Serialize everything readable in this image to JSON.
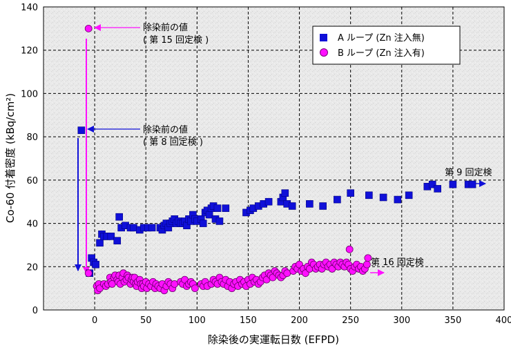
{
  "chart_data": {
    "type": "scatter",
    "title": "",
    "xlabel": "除染後の実運転日数 (EFPD)",
    "ylabel": "Co-60 付着密度 (kBq/cm²)",
    "xlim": [
      -50,
      400
    ],
    "ylim": [
      0,
      140
    ],
    "x_ticks": [
      "-50",
      "0",
      "50",
      "100",
      "150",
      "200",
      "250",
      "300",
      "350",
      "400"
    ],
    "x_tick_values": [
      -50,
      0,
      50,
      100,
      150,
      200,
      250,
      300,
      350,
      400
    ],
    "x_tick_labels_shown": [
      "",
      "0",
      "50",
      "100",
      "150",
      "200",
      "250",
      "300",
      "350",
      "400"
    ],
    "y_ticks": [
      "0",
      "20",
      "40",
      "60",
      "80",
      "100",
      "120",
      "140"
    ],
    "y_tick_values": [
      0,
      20,
      40,
      60,
      80,
      100,
      120,
      140
    ],
    "grid": true,
    "legend_position": "top-right",
    "series": [
      {
        "name": "A ループ (Zn 注入無)",
        "marker": "square",
        "color": "#1010d8",
        "points": [
          [
            -13,
            83
          ],
          [
            -5,
            17
          ],
          [
            -3,
            24
          ],
          [
            -1,
            22
          ],
          [
            1,
            21
          ],
          [
            5,
            31
          ],
          [
            7,
            35
          ],
          [
            9,
            34
          ],
          [
            12,
            34
          ],
          [
            16,
            34
          ],
          [
            22,
            32
          ],
          [
            24,
            43
          ],
          [
            26,
            38
          ],
          [
            30,
            39
          ],
          [
            35,
            38
          ],
          [
            38,
            38
          ],
          [
            44,
            37
          ],
          [
            48,
            38
          ],
          [
            52,
            38
          ],
          [
            56,
            38
          ],
          [
            64,
            38
          ],
          [
            66,
            37
          ],
          [
            68,
            39
          ],
          [
            70,
            40
          ],
          [
            72,
            38
          ],
          [
            74,
            40
          ],
          [
            76,
            41
          ],
          [
            78,
            42
          ],
          [
            80,
            40
          ],
          [
            82,
            41
          ],
          [
            84,
            40
          ],
          [
            86,
            40
          ],
          [
            88,
            41
          ],
          [
            90,
            39
          ],
          [
            92,
            42
          ],
          [
            94,
            41
          ],
          [
            96,
            44
          ],
          [
            98,
            42
          ],
          [
            100,
            41
          ],
          [
            104,
            42
          ],
          [
            106,
            40
          ],
          [
            108,
            45
          ],
          [
            110,
            46
          ],
          [
            112,
            44
          ],
          [
            114,
            47
          ],
          [
            116,
            48
          ],
          [
            118,
            42
          ],
          [
            120,
            47
          ],
          [
            122,
            41
          ],
          [
            128,
            47
          ],
          [
            148,
            45
          ],
          [
            152,
            46
          ],
          [
            155,
            47
          ],
          [
            160,
            48
          ],
          [
            165,
            49
          ],
          [
            170,
            50
          ],
          [
            182,
            50
          ],
          [
            184,
            52
          ],
          [
            186,
            54
          ],
          [
            188,
            49
          ],
          [
            193,
            48
          ],
          [
            210,
            49
          ],
          [
            223,
            48
          ],
          [
            237,
            51
          ],
          [
            250,
            54
          ],
          [
            268,
            53
          ],
          [
            282,
            52
          ],
          [
            296,
            51
          ],
          [
            307,
            53
          ],
          [
            325,
            57
          ],
          [
            330,
            58
          ],
          [
            335,
            56
          ],
          [
            350,
            58
          ],
          [
            365,
            58
          ],
          [
            369,
            58
          ]
        ]
      },
      {
        "name": "B ループ (Zn 注入有)",
        "marker": "circle",
        "color": "#ff10ff",
        "points": [
          [
            -6,
            130
          ],
          [
            -6,
            17
          ],
          [
            2,
            11
          ],
          [
            3,
            9
          ],
          [
            4,
            12
          ],
          [
            5,
            10
          ],
          [
            9,
            12
          ],
          [
            11,
            11
          ],
          [
            13,
            12
          ],
          [
            15,
            15
          ],
          [
            16,
            13
          ],
          [
            17,
            12
          ],
          [
            19,
            15
          ],
          [
            20,
            16
          ],
          [
            22,
            14
          ],
          [
            23,
            13
          ],
          [
            24,
            16
          ],
          [
            25,
            12
          ],
          [
            27,
            15
          ],
          [
            28,
            17
          ],
          [
            29,
            13
          ],
          [
            31,
            14
          ],
          [
            32,
            16
          ],
          [
            33,
            15
          ],
          [
            35,
            12
          ],
          [
            36,
            14
          ],
          [
            37,
            15
          ],
          [
            38,
            13
          ],
          [
            39,
            15
          ],
          [
            40,
            12
          ],
          [
            41,
            11
          ],
          [
            42,
            13
          ],
          [
            44,
            14
          ],
          [
            45,
            12
          ],
          [
            46,
            10
          ],
          [
            47,
            12
          ],
          [
            48,
            11
          ],
          [
            50,
            13
          ],
          [
            51,
            10
          ],
          [
            53,
            12
          ],
          [
            55,
            11
          ],
          [
            57,
            13
          ],
          [
            59,
            10
          ],
          [
            60,
            12
          ],
          [
            62,
            11
          ],
          [
            64,
            10
          ],
          [
            66,
            12
          ],
          [
            68,
            9
          ],
          [
            70,
            11
          ],
          [
            72,
            13
          ],
          [
            74,
            12
          ],
          [
            76,
            10
          ],
          [
            78,
            12
          ],
          [
            84,
            13
          ],
          [
            86,
            12
          ],
          [
            88,
            14
          ],
          [
            90,
            11
          ],
          [
            92,
            12
          ],
          [
            94,
            13
          ],
          [
            96,
            12
          ],
          [
            98,
            10
          ],
          [
            104,
            12
          ],
          [
            106,
            11
          ],
          [
            108,
            13
          ],
          [
            110,
            11
          ],
          [
            114,
            12
          ],
          [
            116,
            14
          ],
          [
            118,
            13
          ],
          [
            120,
            12
          ],
          [
            122,
            15
          ],
          [
            124,
            13
          ],
          [
            126,
            12
          ],
          [
            128,
            14
          ],
          [
            130,
            11
          ],
          [
            132,
            13
          ],
          [
            134,
            10
          ],
          [
            136,
            12
          ],
          [
            138,
            13
          ],
          [
            140,
            11
          ],
          [
            142,
            14
          ],
          [
            144,
            12
          ],
          [
            146,
            13
          ],
          [
            148,
            11
          ],
          [
            150,
            14
          ],
          [
            152,
            12
          ],
          [
            154,
            15
          ],
          [
            156,
            13
          ],
          [
            158,
            14
          ],
          [
            160,
            12
          ],
          [
            162,
            13
          ],
          [
            164,
            15
          ],
          [
            166,
            16
          ],
          [
            168,
            14
          ],
          [
            170,
            17
          ],
          [
            172,
            16
          ],
          [
            174,
            15
          ],
          [
            176,
            18
          ],
          [
            178,
            17
          ],
          [
            180,
            16
          ],
          [
            182,
            15
          ],
          [
            184,
            16
          ],
          [
            186,
            18
          ],
          [
            188,
            17
          ],
          [
            194,
            18
          ],
          [
            196,
            20
          ],
          [
            198,
            19
          ],
          [
            200,
            21
          ],
          [
            202,
            18
          ],
          [
            204,
            19
          ],
          [
            206,
            17
          ],
          [
            208,
            20
          ],
          [
            210,
            19
          ],
          [
            212,
            22
          ],
          [
            214,
            21
          ],
          [
            216,
            19
          ],
          [
            218,
            20
          ],
          [
            220,
            21
          ],
          [
            222,
            19
          ],
          [
            224,
            21
          ],
          [
            226,
            22
          ],
          [
            228,
            20
          ],
          [
            230,
            21
          ],
          [
            232,
            19
          ],
          [
            234,
            22
          ],
          [
            236,
            21
          ],
          [
            238,
            20
          ],
          [
            240,
            22
          ],
          [
            242,
            21
          ],
          [
            244,
            20
          ],
          [
            246,
            22
          ],
          [
            248,
            21
          ],
          [
            249,
            28
          ],
          [
            250,
            19
          ],
          [
            252,
            18
          ],
          [
            254,
            20
          ],
          [
            256,
            21
          ],
          [
            258,
            19
          ],
          [
            260,
            20
          ],
          [
            262,
            18
          ],
          [
            264,
            19
          ],
          [
            266,
            21
          ],
          [
            267,
            24
          ]
        ]
      }
    ],
    "annotations": [
      {
        "text_line1": "除染前の値",
        "text_line2": "( 第 15 回定検 )",
        "color": "#ff10ff"
      },
      {
        "text_line1": "除染前の値",
        "text_line2": "( 第 8 回定検 )",
        "color": "#1010d8"
      },
      {
        "text": "第 9 回定検",
        "color": "#1010d8"
      },
      {
        "text": "第 16 回定検",
        "color": "#ff10ff"
      }
    ]
  }
}
